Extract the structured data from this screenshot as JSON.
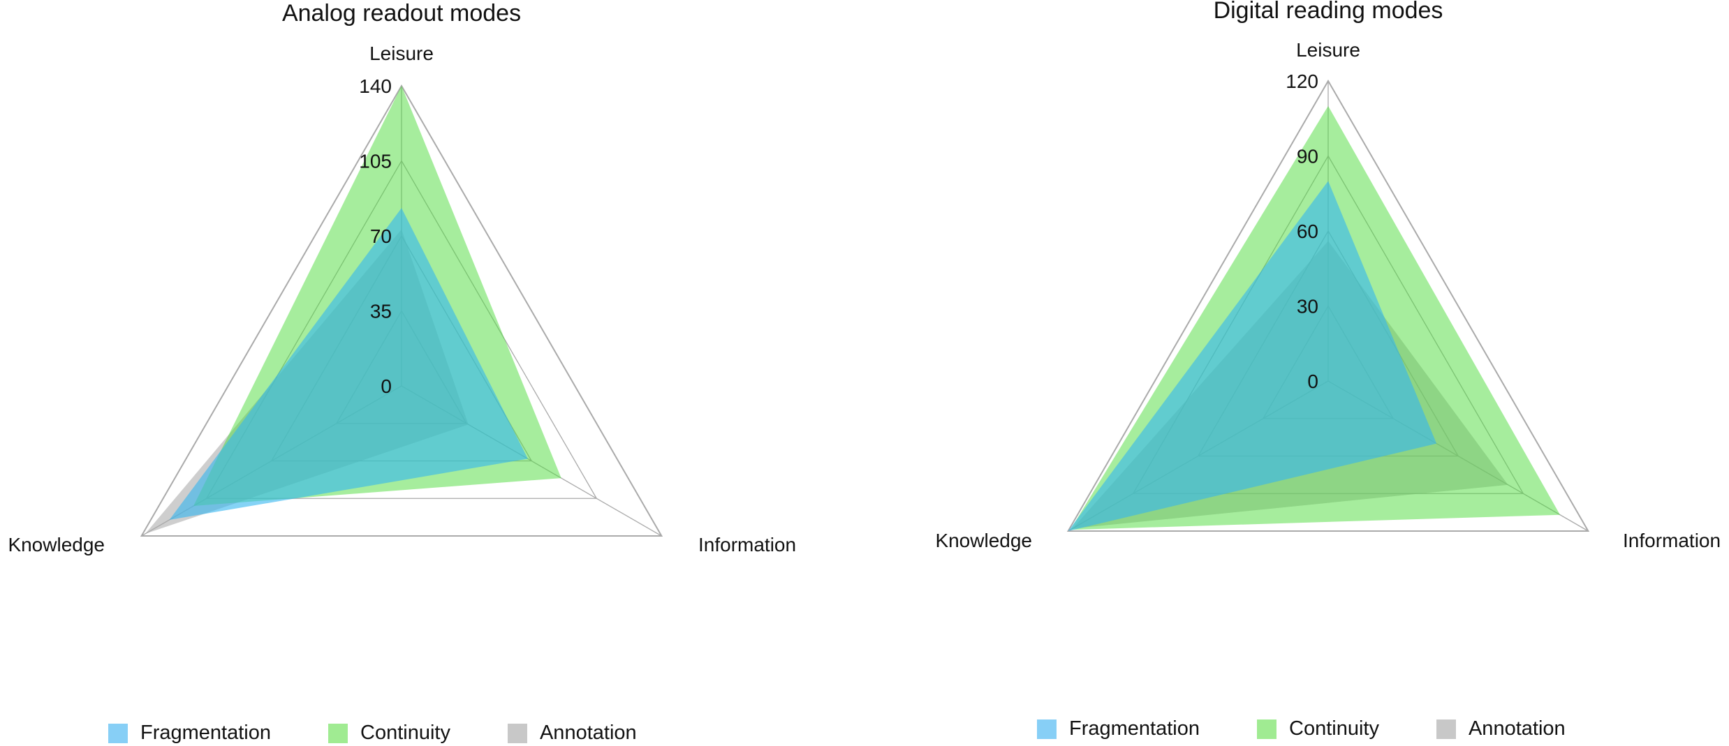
{
  "colors": {
    "Fragmentation": "#33b5f0",
    "Continuity": "#4ddc3c",
    "Annotation": "#a6a6a6",
    "grid": "#aaaaaa"
  },
  "chart_data": [
    {
      "type": "radar",
      "title": "Analog readout modes",
      "axes": [
        "Leisure",
        "Information",
        "Knowledge"
      ],
      "rmax": 140,
      "ticks": [
        "0",
        "35",
        "70",
        "105",
        "140"
      ],
      "tick_values": [
        0,
        35,
        70,
        105,
        140
      ],
      "grid": true,
      "legend_position": "bottom",
      "series": [
        {
          "name": "Fragmentation",
          "values": [
            83,
            68,
            125
          ]
        },
        {
          "name": "Continuity",
          "values": [
            140,
            86,
            112
          ]
        },
        {
          "name": "Annotation",
          "values": [
            73,
            36,
            138
          ]
        }
      ]
    },
    {
      "type": "radar",
      "title": "Digital reading modes",
      "axes": [
        "Leisure",
        "Information",
        "Knowledge"
      ],
      "rmax": 120,
      "ticks": [
        "0",
        "30",
        "60",
        "90",
        "120"
      ],
      "tick_values": [
        0,
        30,
        60,
        90,
        120
      ],
      "grid": true,
      "legend_position": "bottom",
      "series": [
        {
          "name": "Fragmentation",
          "values": [
            80,
            50,
            120
          ]
        },
        {
          "name": "Continuity",
          "values": [
            110,
            107,
            119
          ]
        },
        {
          "name": "Annotation",
          "values": [
            56,
            83,
            118
          ]
        }
      ]
    }
  ]
}
